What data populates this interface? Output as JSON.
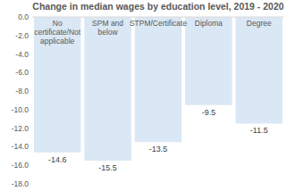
{
  "chart_data": {
    "type": "bar",
    "title": "Change in median wages by education level, 2019 - 2020",
    "categories": [
      "No certificate/Not applicable",
      "SPM and below",
      "STPM/Certificate",
      "Diploma",
      "Degree"
    ],
    "values": [
      -14.6,
      -15.5,
      -13.5,
      -9.5,
      -11.5
    ],
    "color": "#dae7f4",
    "ylim": [
      -18,
      0
    ],
    "yticks": [
      {
        "value": -18,
        "label": "-18.0"
      },
      {
        "value": -16,
        "label": "-16.0"
      },
      {
        "value": -14,
        "label": "-14.0"
      },
      {
        "value": -12,
        "label": "-12.0"
      },
      {
        "value": -10,
        "label": "-10.0"
      },
      {
        "value": -8,
        "label": "-8.0"
      },
      {
        "value": -6,
        "label": "-6.0"
      },
      {
        "value": -4,
        "label": "-4.0"
      },
      {
        "value": -2,
        "label": "-2.0"
      },
      {
        "value": 0,
        "label": "0.0"
      }
    ],
    "grid": false,
    "data_labels": true
  }
}
